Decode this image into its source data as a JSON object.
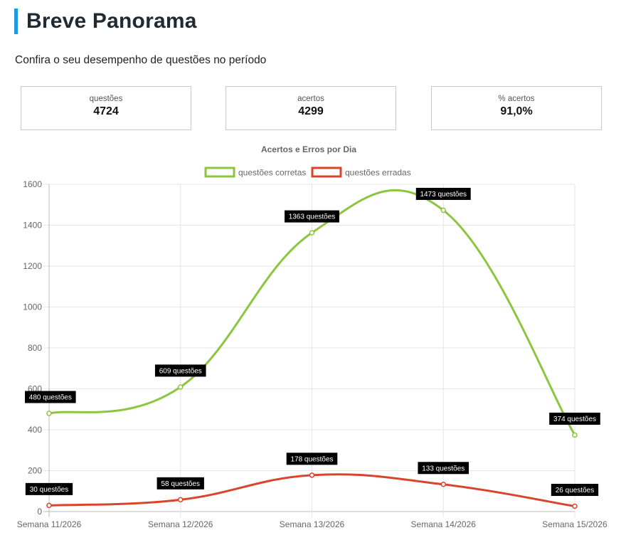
{
  "page": {
    "title": "Breve Panorama",
    "subtitle": "Confira o seu desempenho de questões no período"
  },
  "cards": [
    {
      "label": "questões",
      "value": "4724"
    },
    {
      "label": "acertos",
      "value": "4299"
    },
    {
      "label": "% acertos",
      "value": "91,0%"
    }
  ],
  "colors": {
    "accent": "#1e9be0",
    "correct": "#8cc63f",
    "wrong": "#d9442c"
  },
  "chart_data": {
    "type": "line",
    "title": "Acertos e Erros por Dia",
    "categories": [
      "Semana 11/2026",
      "Semana 12/2026",
      "Semana 13/2026",
      "Semana 14/2026",
      "Semana 15/2026"
    ],
    "series": [
      {
        "name": "questões corretas",
        "color": "#8cc63f",
        "values": [
          480,
          609,
          1363,
          1473,
          374
        ],
        "labels": [
          "480 questões",
          "609 questões",
          "1363 questões",
          "1473 questões",
          "374 questões"
        ]
      },
      {
        "name": "questões erradas",
        "color": "#d9442c",
        "values": [
          30,
          58,
          178,
          133,
          26
        ],
        "labels": [
          "30 questões",
          "58 questões",
          "178 questões",
          "133 questões",
          "26 questões"
        ]
      }
    ],
    "ylim": [
      0,
      1600
    ],
    "yticks": [
      0,
      200,
      400,
      600,
      800,
      1000,
      1200,
      1400,
      1600
    ],
    "legend": "top",
    "grid": true
  }
}
